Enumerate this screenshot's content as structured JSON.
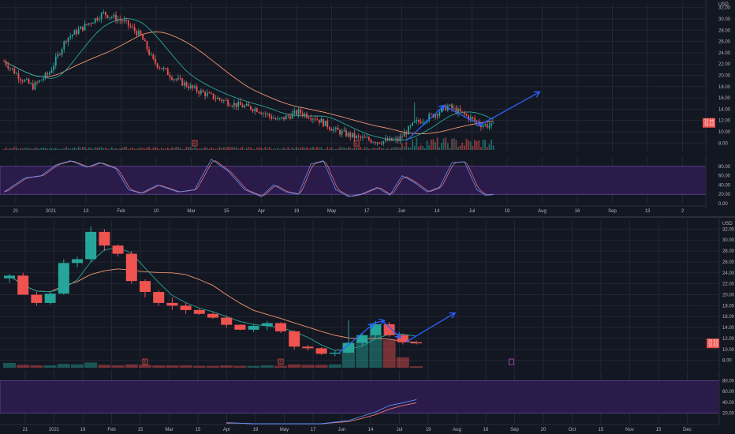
{
  "colors": {
    "bg": "#131722",
    "grid": "#232733",
    "up": "#26a69a",
    "down": "#ef5350",
    "ma_fast": "#26a69a",
    "ma_slow": "#f0936e",
    "arrow": "#2962ff",
    "osc_band": "#2a1b4a",
    "osc_border": "#7e57c2",
    "k_line": "#5b8ff9",
    "d_line": "#e57373",
    "text": "#b2b5be",
    "price_tag": "#ef5350"
  },
  "icons": {
    "earnings": "earnings-marker-icon",
    "alert": "alert-marker-icon"
  },
  "chart_data": [
    {
      "type": "candlestick",
      "timeframe": "daily",
      "currency_label": "USD",
      "ylim": [
        6.5,
        32.8
      ],
      "yticks": [
        32.0,
        30.0,
        28.0,
        26.0,
        24.0,
        22.0,
        20.0,
        18.0,
        16.0,
        14.0,
        12.0,
        10.0,
        8.0
      ],
      "xticks": [
        "21",
        "2021",
        "13",
        "Feb",
        "10",
        "Mar",
        "15",
        "Apr",
        "19",
        "May",
        "17",
        "Jun",
        "14",
        "Jul",
        "19",
        "Aug",
        "16",
        "Sep",
        "13",
        "2"
      ],
      "price_anchors": [
        {
          "i": 0,
          "p": 22.5
        },
        {
          "i": 8,
          "p": 19.5
        },
        {
          "i": 14,
          "p": 18.0
        },
        {
          "i": 22,
          "p": 20.5
        },
        {
          "i": 30,
          "p": 26.5
        },
        {
          "i": 40,
          "p": 29.0
        },
        {
          "i": 48,
          "p": 31.0
        },
        {
          "i": 58,
          "p": 29.5
        },
        {
          "i": 66,
          "p": 27.0
        },
        {
          "i": 72,
          "p": 22.5
        },
        {
          "i": 82,
          "p": 19.5
        },
        {
          "i": 92,
          "p": 17.5
        },
        {
          "i": 102,
          "p": 16.0
        },
        {
          "i": 112,
          "p": 14.8
        },
        {
          "i": 122,
          "p": 14.0
        },
        {
          "i": 132,
          "p": 12.0
        },
        {
          "i": 142,
          "p": 13.5
        },
        {
          "i": 150,
          "p": 12.5
        },
        {
          "i": 160,
          "p": 10.2
        },
        {
          "i": 170,
          "p": 9.0
        },
        {
          "i": 180,
          "p": 8.3
        },
        {
          "i": 190,
          "p": 8.5
        },
        {
          "i": 198,
          "p": 11.5
        },
        {
          "i": 206,
          "p": 12.8
        },
        {
          "i": 214,
          "p": 14.5
        },
        {
          "i": 222,
          "p": 13.0
        },
        {
          "i": 230,
          "p": 11.3
        }
      ],
      "spikes": [
        {
          "i": 198,
          "h": 15.2
        },
        {
          "i": 214,
          "h": 15.0
        }
      ],
      "arrows": [
        {
          "from": [
            194,
            8.4
          ],
          "to": [
            212,
            14.6
          ]
        },
        {
          "from": [
            212,
            14.6
          ],
          "to": [
            230,
            11.2
          ]
        },
        {
          "from": [
            230,
            11.3
          ],
          "to": [
            258,
            17.0
          ]
        }
      ],
      "earnings_markers": [
        92,
        170
      ],
      "last_price_tags": [
        "10.56",
        "10.53"
      ],
      "oscillator": {
        "ylim": [
          0,
          100
        ],
        "band": [
          20,
          80
        ],
        "yticks": [
          80.0,
          60.0,
          40.0,
          20.0,
          0.0
        ],
        "anchors": [
          {
            "i": 0,
            "v": 25
          },
          {
            "i": 10,
            "v": 55
          },
          {
            "i": 18,
            "v": 60
          },
          {
            "i": 25,
            "v": 83
          },
          {
            "i": 32,
            "v": 92
          },
          {
            "i": 40,
            "v": 78
          },
          {
            "i": 46,
            "v": 88
          },
          {
            "i": 54,
            "v": 75
          },
          {
            "i": 60,
            "v": 30
          },
          {
            "i": 66,
            "v": 22
          },
          {
            "i": 74,
            "v": 40
          },
          {
            "i": 84,
            "v": 25
          },
          {
            "i": 92,
            "v": 30
          },
          {
            "i": 100,
            "v": 95
          },
          {
            "i": 108,
            "v": 70
          },
          {
            "i": 116,
            "v": 30
          },
          {
            "i": 124,
            "v": 15
          },
          {
            "i": 130,
            "v": 40
          },
          {
            "i": 136,
            "v": 25
          },
          {
            "i": 142,
            "v": 20
          },
          {
            "i": 148,
            "v": 85
          },
          {
            "i": 154,
            "v": 92
          },
          {
            "i": 160,
            "v": 30
          },
          {
            "i": 166,
            "v": 15
          },
          {
            "i": 172,
            "v": 20
          },
          {
            "i": 180,
            "v": 35
          },
          {
            "i": 186,
            "v": 18
          },
          {
            "i": 192,
            "v": 60
          },
          {
            "i": 198,
            "v": 45
          },
          {
            "i": 204,
            "v": 25
          },
          {
            "i": 210,
            "v": 35
          },
          {
            "i": 216,
            "v": 88
          },
          {
            "i": 222,
            "v": 90
          },
          {
            "i": 228,
            "v": 30
          },
          {
            "i": 232,
            "v": 18
          },
          {
            "i": 236,
            "v": 20
          }
        ]
      }
    },
    {
      "type": "candlestick",
      "timeframe": "weekly",
      "currency_label": "USD",
      "ylim": [
        6.5,
        33.5
      ],
      "yticks": [
        32.0,
        30.0,
        28.0,
        26.0,
        24.0,
        22.0,
        20.0,
        18.0,
        16.0,
        14.0,
        12.0,
        10.0,
        8.0
      ],
      "xticks": [
        "21",
        "2021",
        "19",
        "Feb",
        "15",
        "Mar",
        "15",
        "Apr",
        "19",
        "May",
        "17",
        "Jun",
        "14",
        "Jul",
        "19",
        "Aug",
        "16",
        "Sep",
        "20",
        "Oct",
        "15",
        "Nov",
        "15",
        "Dec"
      ],
      "candles": [
        {
          "o": 23.0,
          "h": 23.8,
          "l": 22.2,
          "c": 23.5
        },
        {
          "o": 23.5,
          "h": 24.0,
          "l": 20.0,
          "c": 20.0
        },
        {
          "o": 20.0,
          "h": 20.5,
          "l": 18.0,
          "c": 18.5
        },
        {
          "o": 18.5,
          "h": 20.5,
          "l": 18.2,
          "c": 20.2
        },
        {
          "o": 20.2,
          "h": 26.5,
          "l": 20.0,
          "c": 25.8
        },
        {
          "o": 25.8,
          "h": 27.0,
          "l": 25.0,
          "c": 26.5
        },
        {
          "o": 26.5,
          "h": 32.5,
          "l": 26.0,
          "c": 31.5
        },
        {
          "o": 31.5,
          "h": 32.0,
          "l": 28.0,
          "c": 29.0
        },
        {
          "o": 29.0,
          "h": 29.2,
          "l": 27.0,
          "c": 27.5
        },
        {
          "o": 27.5,
          "h": 28.0,
          "l": 22.0,
          "c": 22.5
        },
        {
          "o": 22.5,
          "h": 22.8,
          "l": 19.5,
          "c": 20.5
        },
        {
          "o": 20.5,
          "h": 20.8,
          "l": 18.0,
          "c": 18.5
        },
        {
          "o": 18.5,
          "h": 19.5,
          "l": 17.2,
          "c": 18.0
        },
        {
          "o": 18.0,
          "h": 18.6,
          "l": 16.5,
          "c": 17.2
        },
        {
          "o": 17.2,
          "h": 17.5,
          "l": 16.3,
          "c": 16.5
        },
        {
          "o": 16.5,
          "h": 16.8,
          "l": 15.6,
          "c": 15.8
        },
        {
          "o": 15.8,
          "h": 16.2,
          "l": 14.0,
          "c": 14.5
        },
        {
          "o": 14.5,
          "h": 14.6,
          "l": 13.5,
          "c": 13.6
        },
        {
          "o": 13.6,
          "h": 14.7,
          "l": 13.2,
          "c": 14.3
        },
        {
          "o": 14.3,
          "h": 15.2,
          "l": 13.5,
          "c": 14.8
        },
        {
          "o": 14.8,
          "h": 15.0,
          "l": 13.0,
          "c": 13.3
        },
        {
          "o": 13.3,
          "h": 13.5,
          "l": 10.0,
          "c": 10.5
        },
        {
          "o": 10.5,
          "h": 10.8,
          "l": 9.8,
          "c": 10.2
        },
        {
          "o": 10.2,
          "h": 10.4,
          "l": 9.0,
          "c": 9.2
        },
        {
          "o": 9.2,
          "h": 9.8,
          "l": 8.7,
          "c": 9.4
        },
        {
          "o": 9.4,
          "h": 15.3,
          "l": 9.2,
          "c": 11.2
        },
        {
          "o": 11.2,
          "h": 13.0,
          "l": 10.5,
          "c": 12.6
        },
        {
          "o": 12.6,
          "h": 15.2,
          "l": 12.0,
          "c": 14.6
        },
        {
          "o": 14.6,
          "h": 15.0,
          "l": 12.3,
          "c": 12.6
        },
        {
          "o": 12.6,
          "h": 12.8,
          "l": 10.9,
          "c": 11.3
        },
        {
          "o": 11.3,
          "h": 11.6,
          "l": 10.9,
          "c": 11.1
        }
      ],
      "volume": [
        1.0,
        0.6,
        0.5,
        0.5,
        0.8,
        0.7,
        1.1,
        0.6,
        0.5,
        0.7,
        0.6,
        0.5,
        0.5,
        0.5,
        0.4,
        0.4,
        0.5,
        0.4,
        0.4,
        0.5,
        0.4,
        0.7,
        0.6,
        0.6,
        0.7,
        5.2,
        5.8,
        7.0,
        5.8,
        2.2,
        0.3
      ],
      "arrows": [
        {
          "from": [
            24.3,
            9.4
          ],
          "to": [
            26.8,
            14.6
          ]
        },
        {
          "from": [
            26.8,
            14.8
          ],
          "to": [
            27.6,
            15.2
          ]
        },
        {
          "from": [
            27.6,
            15.0
          ],
          "to": [
            28.8,
            12.2
          ]
        },
        {
          "from": [
            29.2,
            11.3
          ],
          "to": [
            32.8,
            16.6
          ]
        }
      ],
      "earnings_markers": [
        10,
        20
      ],
      "alert_marker_index": 37,
      "last_price_tags": [
        "10.53",
        "10.53"
      ],
      "oscillator": {
        "ylim": [
          0,
          100
        ],
        "band": [
          20,
          80
        ],
        "yticks": [
          80.0,
          60.0,
          40.0,
          20.0
        ],
        "k": [
          2,
          1,
          0,
          0,
          0,
          0,
          0,
          0,
          3,
          6,
          14,
          22,
          34,
          39,
          45
        ],
        "d": [
          1,
          1,
          0,
          0,
          0,
          0,
          0,
          0,
          2,
          4,
          10,
          17,
          27,
          34,
          39
        ],
        "start_index": 16
      }
    }
  ]
}
